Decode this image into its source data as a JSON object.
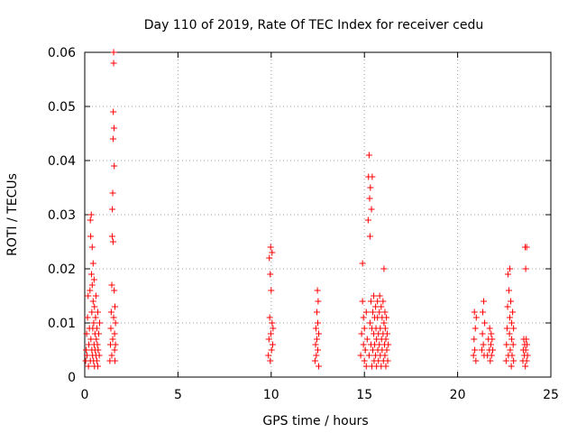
{
  "chart_data": {
    "type": "scatter",
    "title": "Day 110 of 2019, Rate Of TEC Index for receiver cedu",
    "xlabel": "GPS time / hours",
    "ylabel": "ROTI / TECUs",
    "xlim": [
      0,
      25
    ],
    "ylim": [
      0,
      0.06
    ],
    "xticks": [
      0,
      5,
      10,
      15,
      20,
      25
    ],
    "yticks": [
      0,
      0.01,
      0.02,
      0.03,
      0.04,
      0.05,
      0.06
    ],
    "xtick_labels": [
      "0",
      "5",
      "10",
      "15",
      "20",
      "25"
    ],
    "ytick_labels": [
      "0",
      "0.01",
      "0.02",
      "0.03",
      "0.04",
      "0.05",
      "0.06"
    ],
    "grid": true,
    "marker": "+",
    "series": [
      {
        "name": "ROTI",
        "color": "#ff0000",
        "points": [
          [
            0.05,
            0.003
          ],
          [
            0.08,
            0.005
          ],
          [
            0.1,
            0.008
          ],
          [
            0.12,
            0.004
          ],
          [
            0.15,
            0.011
          ],
          [
            0.18,
            0.015
          ],
          [
            0.2,
            0.002
          ],
          [
            0.22,
            0.006
          ],
          [
            0.25,
            0.009
          ],
          [
            0.28,
            0.016
          ],
          [
            0.3,
            0.029
          ],
          [
            0.3,
            0.003
          ],
          [
            0.32,
            0.026
          ],
          [
            0.33,
            0.007
          ],
          [
            0.35,
            0.03
          ],
          [
            0.36,
            0.019
          ],
          [
            0.38,
            0.012
          ],
          [
            0.38,
            0.005
          ],
          [
            0.4,
            0.024
          ],
          [
            0.4,
            0.017
          ],
          [
            0.42,
            0.004
          ],
          [
            0.43,
            0.009
          ],
          [
            0.45,
            0.021
          ],
          [
            0.45,
            0.014
          ],
          [
            0.47,
            0.003
          ],
          [
            0.48,
            0.01
          ],
          [
            0.5,
            0.018
          ],
          [
            0.5,
            0.006
          ],
          [
            0.52,
            0.013
          ],
          [
            0.52,
            0.002
          ],
          [
            0.55,
            0.008
          ],
          [
            0.55,
            0.005
          ],
          [
            0.58,
            0.011
          ],
          [
            0.6,
            0.004
          ],
          [
            0.6,
            0.015
          ],
          [
            0.62,
            0.007
          ],
          [
            0.65,
            0.003
          ],
          [
            0.65,
            0.009
          ],
          [
            0.68,
            0.006
          ],
          [
            0.7,
            0.012
          ],
          [
            0.7,
            0.002
          ],
          [
            0.72,
            0.005
          ],
          [
            0.75,
            0.008
          ],
          [
            0.78,
            0.004
          ],
          [
            0.8,
            0.01
          ],
          [
            1.35,
            0.003
          ],
          [
            1.38,
            0.006
          ],
          [
            1.4,
            0.009
          ],
          [
            1.42,
            0.012
          ],
          [
            1.45,
            0.017
          ],
          [
            1.45,
            0.004
          ],
          [
            1.47,
            0.026
          ],
          [
            1.48,
            0.031
          ],
          [
            1.5,
            0.034
          ],
          [
            1.5,
            0.007
          ],
          [
            1.52,
            0.044
          ],
          [
            1.52,
            0.025
          ],
          [
            1.53,
            0.049
          ],
          [
            1.55,
            0.058
          ],
          [
            1.55,
            0.06
          ],
          [
            1.55,
            0.011
          ],
          [
            1.57,
            0.046
          ],
          [
            1.58,
            0.039
          ],
          [
            1.58,
            0.016
          ],
          [
            1.6,
            0.005
          ],
          [
            1.6,
            0.008
          ],
          [
            1.62,
            0.003
          ],
          [
            1.62,
            0.013
          ],
          [
            1.65,
            0.006
          ],
          [
            1.65,
            0.01
          ],
          [
            9.85,
            0.004
          ],
          [
            9.88,
            0.007
          ],
          [
            9.9,
            0.022
          ],
          [
            9.92,
            0.011
          ],
          [
            9.95,
            0.019
          ],
          [
            9.95,
            0.003
          ],
          [
            9.97,
            0.024
          ],
          [
            9.98,
            0.008
          ],
          [
            10.0,
            0.016
          ],
          [
            10.02,
            0.005
          ],
          [
            10.05,
            0.01
          ],
          [
            10.05,
            0.023
          ],
          [
            10.08,
            0.006
          ],
          [
            10.1,
            0.009
          ],
          [
            12.35,
            0.003
          ],
          [
            12.38,
            0.006
          ],
          [
            12.4,
            0.009
          ],
          [
            12.42,
            0.004
          ],
          [
            12.45,
            0.012
          ],
          [
            12.45,
            0.007
          ],
          [
            12.48,
            0.016
          ],
          [
            12.5,
            0.005
          ],
          [
            12.5,
            0.01
          ],
          [
            12.52,
            0.014
          ],
          [
            12.55,
            0.008
          ],
          [
            12.55,
            0.002
          ],
          [
            14.8,
            0.004
          ],
          [
            14.85,
            0.008
          ],
          [
            14.9,
            0.014
          ],
          [
            14.9,
            0.021
          ],
          [
            14.95,
            0.006
          ],
          [
            14.95,
            0.011
          ],
          [
            15.0,
            0.003
          ],
          [
            15.0,
            0.009
          ],
          [
            15.05,
            0.005
          ],
          [
            15.1,
            0.012
          ],
          [
            15.1,
            0.002
          ],
          [
            15.15,
            0.007
          ],
          [
            15.2,
            0.029
          ],
          [
            15.22,
            0.037
          ],
          [
            15.25,
            0.041
          ],
          [
            15.25,
            0.004
          ],
          [
            15.28,
            0.033
          ],
          [
            15.3,
            0.01
          ],
          [
            15.3,
            0.026
          ],
          [
            15.32,
            0.035
          ],
          [
            15.35,
            0.006
          ],
          [
            15.35,
            0.014
          ],
          [
            15.38,
            0.031
          ],
          [
            15.4,
            0.002
          ],
          [
            15.4,
            0.009
          ],
          [
            15.42,
            0.037
          ],
          [
            15.45,
            0.012
          ],
          [
            15.45,
            0.005
          ],
          [
            15.5,
            0.008
          ],
          [
            15.5,
            0.015
          ],
          [
            15.52,
            0.003
          ],
          [
            15.55,
            0.011
          ],
          [
            15.55,
            0.006
          ],
          [
            15.6,
            0.013
          ],
          [
            15.6,
            0.004
          ],
          [
            15.62,
            0.009
          ],
          [
            15.65,
            0.002
          ],
          [
            15.65,
            0.007
          ],
          [
            15.7,
            0.014
          ],
          [
            15.7,
            0.011
          ],
          [
            15.72,
            0.005
          ],
          [
            15.75,
            0.008
          ],
          [
            15.75,
            0.003
          ],
          [
            15.8,
            0.012
          ],
          [
            15.8,
            0.006
          ],
          [
            15.82,
            0.015
          ],
          [
            15.85,
            0.009
          ],
          [
            15.85,
            0.004
          ],
          [
            15.9,
            0.013
          ],
          [
            15.9,
            0.002
          ],
          [
            15.92,
            0.007
          ],
          [
            15.95,
            0.011
          ],
          [
            15.95,
            0.005
          ],
          [
            16.0,
            0.014
          ],
          [
            16.0,
            0.008
          ],
          [
            16.02,
            0.003
          ],
          [
            16.05,
            0.02
          ],
          [
            16.05,
            0.01
          ],
          [
            16.08,
            0.006
          ],
          [
            16.1,
            0.012
          ],
          [
            16.1,
            0.004
          ],
          [
            16.12,
            0.009
          ],
          [
            16.15,
            0.002
          ],
          [
            16.15,
            0.007
          ],
          [
            16.18,
            0.011
          ],
          [
            16.2,
            0.005
          ],
          [
            16.22,
            0.008
          ],
          [
            16.25,
            0.003
          ],
          [
            16.28,
            0.006
          ],
          [
            20.85,
            0.004
          ],
          [
            20.88,
            0.007
          ],
          [
            20.9,
            0.012
          ],
          [
            20.92,
            0.005
          ],
          [
            20.95,
            0.009
          ],
          [
            20.98,
            0.003
          ],
          [
            21.0,
            0.011
          ],
          [
            21.3,
            0.005
          ],
          [
            21.33,
            0.008
          ],
          [
            21.35,
            0.012
          ],
          [
            21.38,
            0.006
          ],
          [
            21.4,
            0.014
          ],
          [
            21.42,
            0.004
          ],
          [
            21.45,
            0.01
          ],
          [
            21.6,
            0.004
          ],
          [
            21.65,
            0.007
          ],
          [
            21.7,
            0.005
          ],
          [
            21.72,
            0.009
          ],
          [
            21.75,
            0.003
          ],
          [
            21.78,
            0.006
          ],
          [
            21.8,
            0.008
          ],
          [
            21.82,
            0.004
          ],
          [
            21.85,
            0.007
          ],
          [
            21.88,
            0.005
          ],
          [
            22.6,
            0.003
          ],
          [
            22.62,
            0.006
          ],
          [
            22.65,
            0.009
          ],
          [
            22.68,
            0.013
          ],
          [
            22.7,
            0.019
          ],
          [
            22.72,
            0.004
          ],
          [
            22.75,
            0.016
          ],
          [
            22.78,
            0.008
          ],
          [
            22.8,
            0.011
          ],
          [
            22.8,
            0.02
          ],
          [
            22.82,
            0.005
          ],
          [
            22.85,
            0.014
          ],
          [
            22.88,
            0.002
          ],
          [
            22.9,
            0.007
          ],
          [
            22.9,
            0.01
          ],
          [
            22.92,
            0.004
          ],
          [
            22.95,
            0.012
          ],
          [
            22.98,
            0.006
          ],
          [
            23.0,
            0.009
          ],
          [
            23.0,
            0.003
          ],
          [
            23.5,
            0.003
          ],
          [
            23.52,
            0.005
          ],
          [
            23.55,
            0.007
          ],
          [
            23.58,
            0.004
          ],
          [
            23.6,
            0.006
          ],
          [
            23.62,
            0.024
          ],
          [
            23.63,
            0.002
          ],
          [
            23.65,
            0.02
          ],
          [
            23.65,
            0.005
          ],
          [
            23.68,
            0.007
          ],
          [
            23.7,
            0.024
          ],
          [
            23.7,
            0.003
          ],
          [
            23.72,
            0.006
          ],
          [
            23.75,
            0.004
          ]
        ]
      }
    ]
  }
}
